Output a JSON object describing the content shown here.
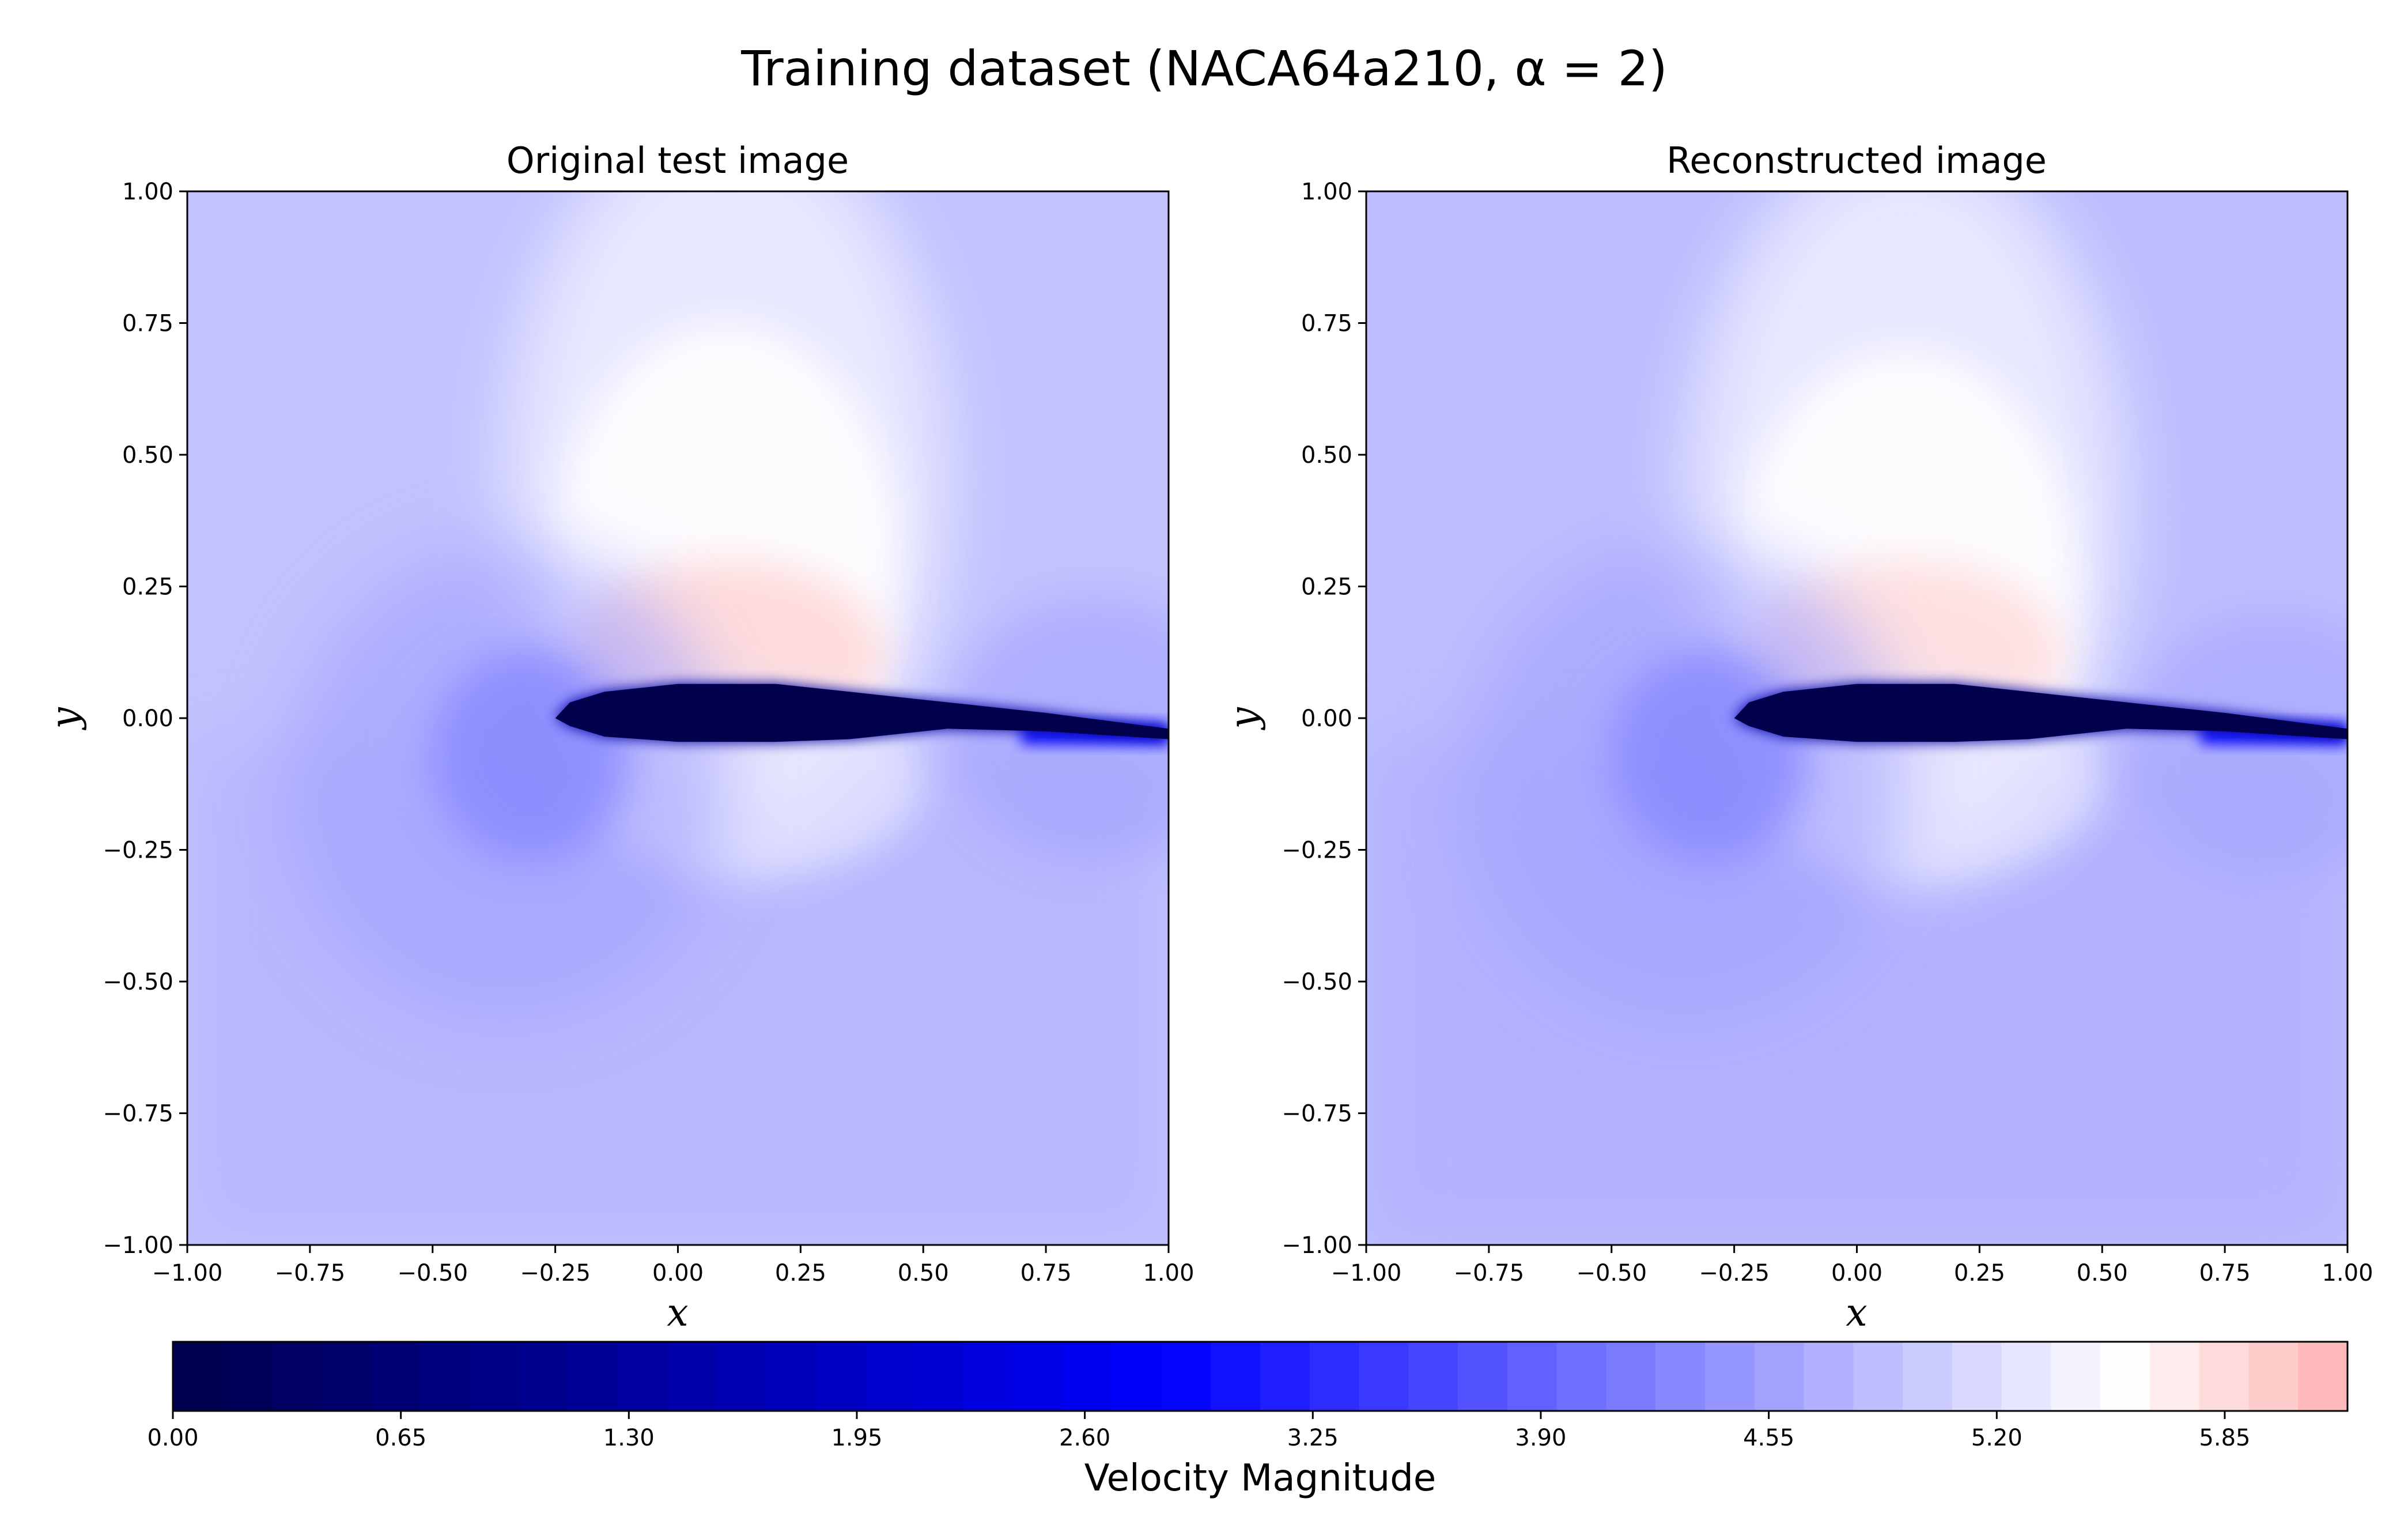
{
  "figure": {
    "title": "Training dataset (NACA64a210, α = 2)"
  },
  "chart_data": [
    {
      "type": "heatmap",
      "title": "Original test image",
      "xlabel": "x",
      "ylabel": "y",
      "xlim": [
        -1.0,
        1.0
      ],
      "ylim": [
        -1.0,
        1.0
      ],
      "xticks": [
        "−1.00",
        "−0.75",
        "−0.50",
        "−0.25",
        "0.00",
        "0.25",
        "0.50",
        "0.75",
        "1.00"
      ],
      "yticks": [
        "−1.00",
        "−0.75",
        "−0.50",
        "−0.25",
        "0.00",
        "0.25",
        "0.50",
        "0.75",
        "1.00"
      ],
      "field": "Velocity Magnitude",
      "freestream_value": 4.9,
      "suction_peak_value": 5.9,
      "suction_peak_center": [
        0.1,
        0.3
      ],
      "stagnation_value": 4.3,
      "stagnation_center": [
        -0.3,
        -0.07
      ],
      "wake_value": 4.55,
      "wake_center": [
        0.85,
        -0.02
      ],
      "airfoil_value": 0.0,
      "airfoil_outline_upper": [
        [
          -0.25,
          0.0
        ],
        [
          -0.22,
          0.03
        ],
        [
          -0.15,
          0.05
        ],
        [
          0.0,
          0.065
        ],
        [
          0.2,
          0.065
        ],
        [
          0.35,
          0.05
        ],
        [
          0.55,
          0.03
        ],
        [
          0.75,
          0.01
        ],
        [
          1.0,
          -0.02
        ]
      ],
      "airfoil_outline_lower": [
        [
          1.0,
          -0.04
        ],
        [
          0.75,
          -0.025
        ],
        [
          0.55,
          -0.02
        ],
        [
          0.35,
          -0.04
        ],
        [
          0.2,
          -0.045
        ],
        [
          0.0,
          -0.045
        ],
        [
          -0.15,
          -0.035
        ],
        [
          -0.22,
          -0.015
        ],
        [
          -0.25,
          0.0
        ]
      ]
    },
    {
      "type": "heatmap",
      "title": "Reconstructed image",
      "xlabel": "x",
      "ylabel": "y",
      "xlim": [
        -1.0,
        1.0
      ],
      "ylim": [
        -1.0,
        1.0
      ],
      "xticks": [
        "−1.00",
        "−0.75",
        "−0.50",
        "−0.25",
        "0.00",
        "0.25",
        "0.50",
        "0.75",
        "1.00"
      ],
      "yticks": [
        "−1.00",
        "−0.75",
        "−0.50",
        "−0.25",
        "0.00",
        "0.25",
        "0.50",
        "0.75",
        "1.00"
      ],
      "field": "Velocity Magnitude",
      "freestream_value": 4.85,
      "suction_peak_value": 5.85,
      "suction_peak_center": [
        0.1,
        0.25
      ],
      "stagnation_value": 4.3,
      "stagnation_center": [
        -0.3,
        -0.07
      ],
      "wake_value": 4.6,
      "wake_center": [
        0.85,
        -0.05
      ],
      "airfoil_value": 0.0,
      "airfoil_outline_upper": [
        [
          -0.25,
          0.0
        ],
        [
          -0.22,
          0.03
        ],
        [
          -0.15,
          0.05
        ],
        [
          0.0,
          0.065
        ],
        [
          0.2,
          0.065
        ],
        [
          0.35,
          0.05
        ],
        [
          0.55,
          0.03
        ],
        [
          0.75,
          0.01
        ],
        [
          1.0,
          -0.02
        ]
      ],
      "airfoil_outline_lower": [
        [
          1.0,
          -0.04
        ],
        [
          0.75,
          -0.025
        ],
        [
          0.55,
          -0.02
        ],
        [
          0.35,
          -0.04
        ],
        [
          0.2,
          -0.045
        ],
        [
          0.0,
          -0.045
        ],
        [
          -0.15,
          -0.035
        ],
        [
          -0.22,
          -0.015
        ],
        [
          -0.25,
          0.0
        ]
      ]
    }
  ],
  "colorbar": {
    "label": "Velocity Magnitude",
    "range": [
      0.0,
      6.2
    ],
    "ticks": [
      "0.00",
      "0.65",
      "1.30",
      "1.95",
      "2.60",
      "3.25",
      "3.90",
      "4.55",
      "5.20",
      "5.85"
    ],
    "tick_values": [
      0.0,
      0.65,
      1.3,
      1.95,
      2.6,
      3.25,
      3.9,
      4.55,
      5.2,
      5.85
    ],
    "colormap": "seismic-lower-half",
    "colors": [
      "#00004c",
      "#0000ff",
      "#ffffff",
      "#ffb3b3"
    ],
    "color_stops": [
      0.0,
      2.85,
      5.55,
      6.2
    ]
  }
}
